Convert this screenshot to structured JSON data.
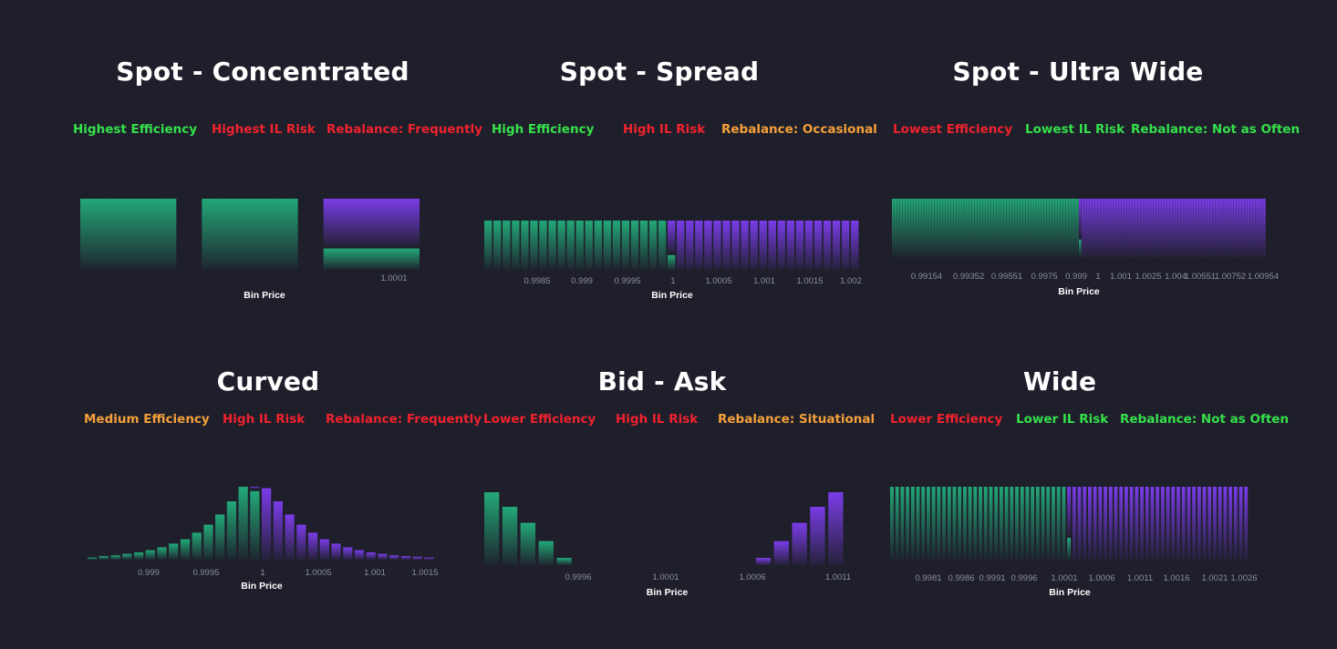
{
  "colors": {
    "background": "#1e1f2b",
    "green": "#35e04a",
    "red": "#f0222d",
    "orange": "#f5a03a",
    "bar_green": "#22a878",
    "bar_purple": "#7a3ce8"
  },
  "chart_data": [
    {
      "id": "spot-concentrated",
      "type": "bar",
      "title": "Spot - Concentrated",
      "labels": [
        {
          "text": "Highest Efficiency",
          "color": "green"
        },
        {
          "text": "Highest IL Risk",
          "color": "red"
        },
        {
          "text": "Rebalance: Frequently",
          "color": "red"
        }
      ],
      "xlabel": "Bin Price",
      "ticks": [
        "1.0001"
      ],
      "bins": [
        {
          "green": 1.0,
          "purple": 0
        },
        {
          "green": 1.0,
          "purple": 0
        },
        {
          "green": 0.3,
          "purple": 0.7
        }
      ]
    },
    {
      "id": "spot-spread",
      "type": "bar",
      "title": "Spot - Spread",
      "labels": [
        {
          "text": "High Efficiency",
          "color": "green"
        },
        {
          "text": "High IL Risk",
          "color": "red"
        },
        {
          "text": "Rebalance: Occasional",
          "color": "orange"
        }
      ],
      "xlabel": "Bin Price",
      "ticks": [
        "0.9985",
        "0.999",
        "0.9995",
        "1",
        "1.0005",
        "1.001",
        "1.0015",
        "1.002"
      ],
      "bar_count": 41,
      "active_bin": 20,
      "value": 1.0
    },
    {
      "id": "spot-ultra-wide",
      "type": "bar",
      "title": "Spot - Ultra Wide",
      "labels": [
        {
          "text": "Lowest Efficiency",
          "color": "red"
        },
        {
          "text": "Lowest IL Risk",
          "color": "green"
        },
        {
          "text": "Rebalance: Not as Often",
          "color": "green"
        }
      ],
      "xlabel": "Bin Price",
      "ticks": [
        "0.99154",
        "0.99352",
        "0.99551",
        "0.9975",
        "0.999",
        "1",
        "1.001",
        "1.0025",
        "1.004",
        "1.00551",
        "1.00752",
        "1.00954"
      ],
      "bar_count": 140,
      "active_bin": 70,
      "value": 1.0
    },
    {
      "id": "curved",
      "type": "bar",
      "title": "Curved",
      "labels": [
        {
          "text": "Medium Efficiency",
          "color": "orange"
        },
        {
          "text": "High IL Risk",
          "color": "red"
        },
        {
          "text": "Rebalance: Frequently",
          "color": "red"
        }
      ],
      "xlabel": "Bin Price",
      "ticks": [
        "0.999",
        "0.9995",
        "1",
        "1.0005",
        "1.001",
        "1.0015"
      ],
      "bins": [
        {
          "green": 0.03,
          "purple": 0
        },
        {
          "green": 0.05,
          "purple": 0
        },
        {
          "green": 0.06,
          "purple": 0
        },
        {
          "green": 0.08,
          "purple": 0
        },
        {
          "green": 0.1,
          "purple": 0
        },
        {
          "green": 0.13,
          "purple": 0
        },
        {
          "green": 0.17,
          "purple": 0
        },
        {
          "green": 0.22,
          "purple": 0
        },
        {
          "green": 0.28,
          "purple": 0
        },
        {
          "green": 0.37,
          "purple": 0
        },
        {
          "green": 0.48,
          "purple": 0
        },
        {
          "green": 0.62,
          "purple": 0
        },
        {
          "green": 0.8,
          "purple": 0
        },
        {
          "green": 1.0,
          "purple": 0
        },
        {
          "green": 0.94,
          "purple": 0.06
        },
        {
          "green": 0,
          "purple": 0.98
        },
        {
          "green": 0,
          "purple": 0.8
        },
        {
          "green": 0,
          "purple": 0.62
        },
        {
          "green": 0,
          "purple": 0.48
        },
        {
          "green": 0,
          "purple": 0.37
        },
        {
          "green": 0,
          "purple": 0.28
        },
        {
          "green": 0,
          "purple": 0.22
        },
        {
          "green": 0,
          "purple": 0.17
        },
        {
          "green": 0,
          "purple": 0.13
        },
        {
          "green": 0,
          "purple": 0.1
        },
        {
          "green": 0,
          "purple": 0.08
        },
        {
          "green": 0,
          "purple": 0.06
        },
        {
          "green": 0,
          "purple": 0.05
        },
        {
          "green": 0,
          "purple": 0.04
        },
        {
          "green": 0,
          "purple": 0.03
        }
      ]
    },
    {
      "id": "bid-ask",
      "type": "bar",
      "title": "Bid - Ask",
      "labels": [
        {
          "text": "Lower Efficiency",
          "color": "red"
        },
        {
          "text": "High IL Risk",
          "color": "red"
        },
        {
          "text": "Rebalance: Situational",
          "color": "orange"
        }
      ],
      "xlabel": "Bin Price",
      "ticks": [
        "0.9996",
        "1.0001",
        "1.0006",
        "1.0011"
      ],
      "bins": [
        {
          "green": 1.0,
          "purple": 0
        },
        {
          "green": 0.8,
          "purple": 0
        },
        {
          "green": 0.58,
          "purple": 0
        },
        {
          "green": 0.33,
          "purple": 0
        },
        {
          "green": 0.1,
          "purple": 0
        },
        {
          "green": 0,
          "purple": 0
        },
        {
          "green": 0,
          "purple": 0
        },
        {
          "green": 0,
          "purple": 0
        },
        {
          "green": 0,
          "purple": 0
        },
        {
          "green": 0,
          "purple": 0
        },
        {
          "green": 0,
          "purple": 0
        },
        {
          "green": 0,
          "purple": 0
        },
        {
          "green": 0,
          "purple": 0
        },
        {
          "green": 0,
          "purple": 0
        },
        {
          "green": 0,
          "purple": 0
        },
        {
          "green": 0,
          "purple": 0.1
        },
        {
          "green": 0,
          "purple": 0.33
        },
        {
          "green": 0,
          "purple": 0.58
        },
        {
          "green": 0,
          "purple": 0.8
        },
        {
          "green": 0,
          "purple": 1.0
        }
      ]
    },
    {
      "id": "wide",
      "type": "bar",
      "title": "Wide",
      "labels": [
        {
          "text": "Lower Efficiency",
          "color": "red"
        },
        {
          "text": "Lower IL Risk",
          "color": "green"
        },
        {
          "text": "Rebalance: Not as Often",
          "color": "green"
        }
      ],
      "xlabel": "Bin Price",
      "ticks": [
        "0.9981",
        "0.9986",
        "0.9991",
        "0.9996",
        "1.0001",
        "1.0006",
        "1.0011",
        "1.0016",
        "1.0021",
        "1.0026"
      ],
      "bar_count": 69,
      "active_bin": 34,
      "value": 1.0
    }
  ]
}
